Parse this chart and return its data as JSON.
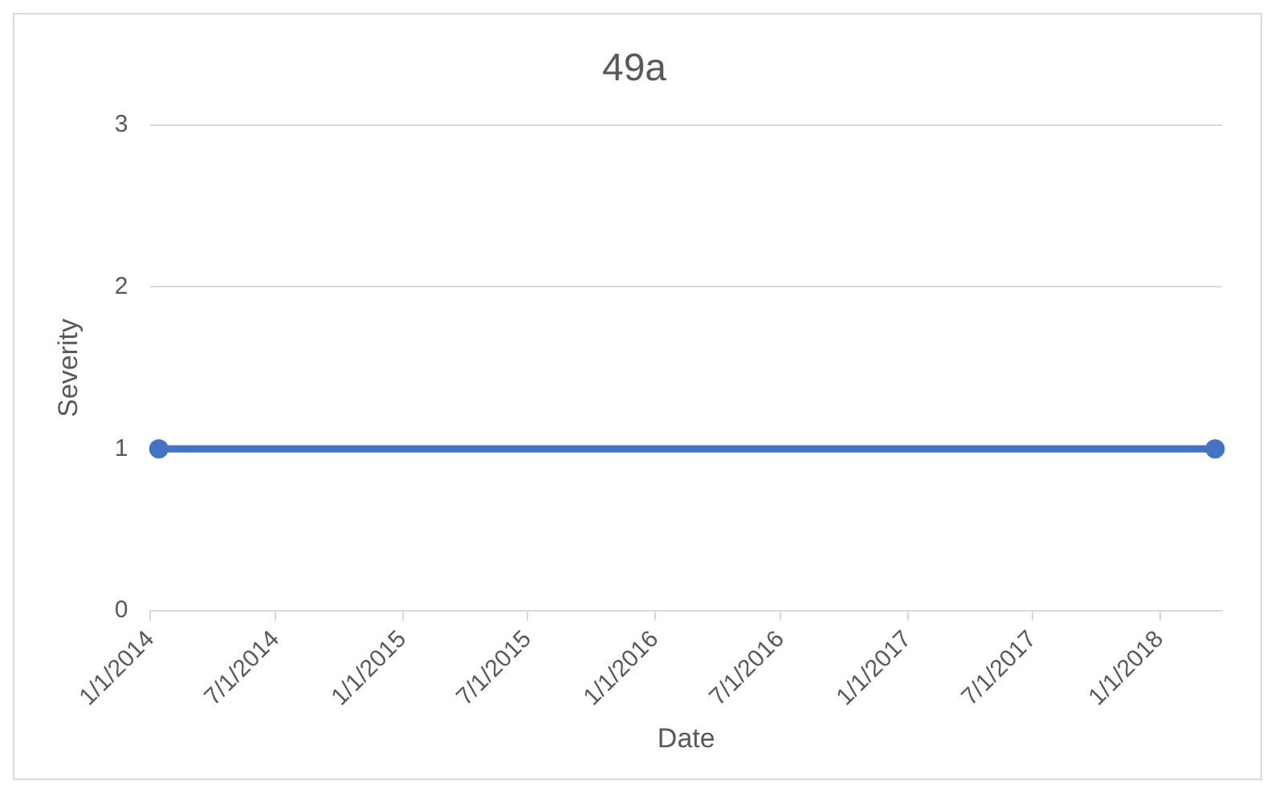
{
  "chart_data": {
    "type": "line",
    "title": "49a",
    "xlabel": "Date",
    "ylabel": "Severity",
    "x": [
      "2014-01-13",
      "2018-03-22"
    ],
    "series": [
      {
        "color": "#4472c4",
        "values": [
          1,
          1
        ]
      }
    ],
    "xlim": [
      "2014-01-01",
      "2018-04-01"
    ],
    "xticks": [
      {
        "value": "2014-01-01",
        "label": "1/1/2014"
      },
      {
        "value": "2014-07-01",
        "label": "7/1/2014"
      },
      {
        "value": "2015-01-01",
        "label": "1/1/2015"
      },
      {
        "value": "2015-07-01",
        "label": "7/1/2015"
      },
      {
        "value": "2016-01-01",
        "label": "1/1/2016"
      },
      {
        "value": "2016-07-01",
        "label": "7/1/2016"
      },
      {
        "value": "2017-01-01",
        "label": "1/1/2017"
      },
      {
        "value": "2017-07-01",
        "label": "7/1/2017"
      },
      {
        "value": "2018-01-01",
        "label": "1/1/2018"
      }
    ],
    "ylim": [
      0,
      3
    ],
    "yticks": [
      0,
      1,
      2,
      3
    ],
    "grid": "y",
    "legend": false,
    "marker": "circle",
    "line_style": "solid"
  }
}
